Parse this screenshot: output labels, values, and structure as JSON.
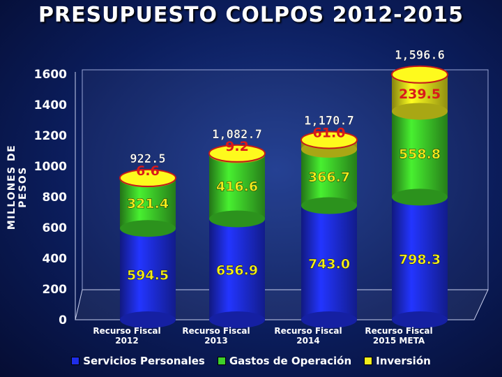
{
  "chart_data": {
    "type": "bar",
    "stacked": true,
    "title": "PRESUPUESTO COLPOS 2012-2015",
    "ylabel": "MILLONES DE PESOS",
    "xlabel": "",
    "ylim": [
      0,
      1600
    ],
    "yticks": [
      "0",
      "200",
      "400",
      "600",
      "800",
      "1000",
      "1200",
      "1400",
      "1600"
    ],
    "categories": [
      [
        "Recurso Fiscal",
        "2012"
      ],
      [
        "Recurso Fiscal",
        "2013"
      ],
      [
        "Recurso Fiscal",
        "2014"
      ],
      [
        "Recurso Fiscal",
        "2015 META"
      ]
    ],
    "series": [
      {
        "name": "Servicios Personales",
        "color": "#1e2ee8",
        "values": [
          594.5,
          656.9,
          743.0,
          798.3
        ],
        "labels": [
          "594.5",
          "656.9",
          "743.0",
          "798.3"
        ]
      },
      {
        "name": "Gastos de Operación",
        "color": "#3fd12a",
        "values": [
          321.4,
          416.6,
          366.7,
          558.8
        ],
        "labels": [
          "321.4",
          "416.6",
          "366.7",
          "558.8"
        ]
      },
      {
        "name": "Inversión",
        "color": "#f2ee1c",
        "values": [
          6.6,
          9.2,
          61.0,
          239.5
        ],
        "labels": [
          "6.6",
          "9.2",
          "61.0",
          "239.5"
        ]
      }
    ],
    "totals": [
      "922.5",
      "1,082.7",
      "1,170.7",
      "1,596.6"
    ],
    "legend_position": "bottom",
    "grid": false
  }
}
